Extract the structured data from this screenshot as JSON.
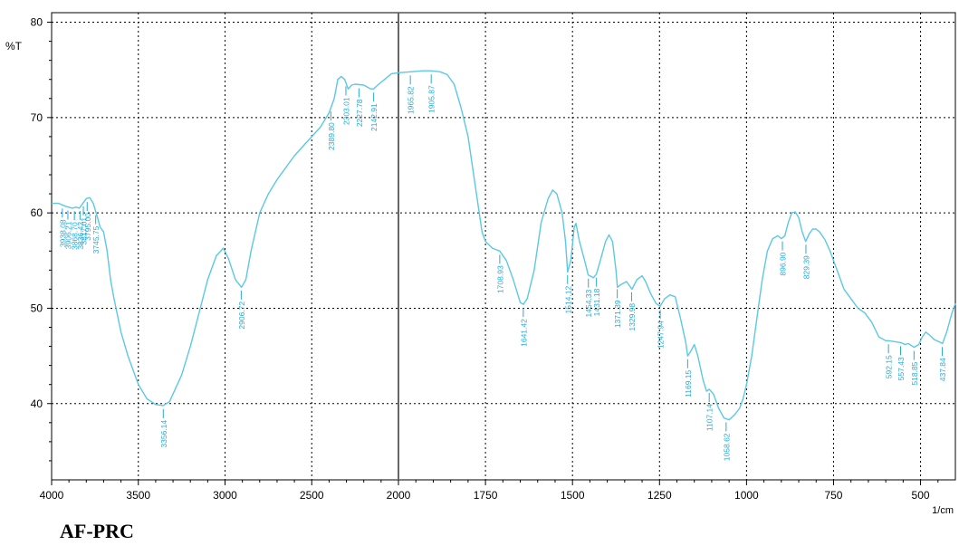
{
  "chart_data": {
    "type": "line",
    "ylabel": "%T",
    "xunit": "1/cm",
    "x_ticks": [
      4000,
      3500,
      3000,
      2500,
      2000,
      1750,
      1500,
      1250,
      1000,
      750,
      500
    ],
    "y_ticks": [
      40,
      50,
      60,
      70,
      80
    ],
    "ylim": [
      32,
      81
    ],
    "x_axis": "wavenumber, split scale: 4000-2000 and 2000-400",
    "grid": true,
    "line_color": "#5bc8e6",
    "label_color": "#29a9d6",
    "series": [
      {
        "points": [
          [
            4000,
            61
          ],
          [
            3960,
            61
          ],
          [
            3920,
            60.7
          ],
          [
            3880,
            60.5
          ],
          [
            3860,
            60.6
          ],
          [
            3840,
            60.5
          ],
          [
            3820,
            61
          ],
          [
            3800,
            61.5
          ],
          [
            3780,
            61.6
          ],
          [
            3760,
            61
          ],
          [
            3740,
            59.8
          ],
          [
            3720,
            58.5
          ],
          [
            3700,
            58
          ],
          [
            3680,
            56
          ],
          [
            3660,
            53
          ],
          [
            3640,
            51
          ],
          [
            3600,
            47.5
          ],
          [
            3560,
            45
          ],
          [
            3500,
            42
          ],
          [
            3450,
            40.5
          ],
          [
            3400,
            39.9
          ],
          [
            3356,
            39.8
          ],
          [
            3320,
            40.2
          ],
          [
            3250,
            43
          ],
          [
            3200,
            46
          ],
          [
            3150,
            49.5
          ],
          [
            3100,
            53
          ],
          [
            3050,
            55.5
          ],
          [
            3010,
            56.3
          ],
          [
            2980,
            55.2
          ],
          [
            2940,
            53
          ],
          [
            2905,
            52.2
          ],
          [
            2880,
            53
          ],
          [
            2850,
            56
          ],
          [
            2800,
            60
          ],
          [
            2750,
            62
          ],
          [
            2700,
            63.5
          ],
          [
            2600,
            66
          ],
          [
            2500,
            68
          ],
          [
            2450,
            69
          ],
          [
            2400,
            70.5
          ],
          [
            2370,
            72
          ],
          [
            2350,
            74
          ],
          [
            2330,
            74.3
          ],
          [
            2310,
            74
          ],
          [
            2290,
            73
          ],
          [
            2270,
            73.4
          ],
          [
            2250,
            73.5
          ],
          [
            2200,
            73.4
          ],
          [
            2160,
            73
          ],
          [
            2143,
            73
          ],
          [
            2120,
            73.4
          ],
          [
            2080,
            74
          ],
          [
            2040,
            74.6
          ],
          [
            2000,
            74.7
          ],
          [
            1965,
            74.8
          ],
          [
            1930,
            74.9
          ],
          [
            1906,
            74.9
          ],
          [
            1880,
            74.8
          ],
          [
            1860,
            74.5
          ],
          [
            1840,
            73.5
          ],
          [
            1820,
            71
          ],
          [
            1800,
            68
          ],
          [
            1780,
            63
          ],
          [
            1760,
            58
          ],
          [
            1750,
            57
          ],
          [
            1730,
            56.3
          ],
          [
            1709,
            56
          ],
          [
            1690,
            55
          ],
          [
            1670,
            53
          ],
          [
            1650,
            50.6
          ],
          [
            1641,
            50.4
          ],
          [
            1630,
            51
          ],
          [
            1610,
            54
          ],
          [
            1590,
            59
          ],
          [
            1570,
            61.5
          ],
          [
            1557,
            62.4
          ],
          [
            1545,
            62
          ],
          [
            1530,
            60
          ],
          [
            1520,
            57
          ],
          [
            1514,
            53.8
          ],
          [
            1505,
            55
          ],
          [
            1495,
            58.5
          ],
          [
            1490,
            58.9
          ],
          [
            1480,
            57
          ],
          [
            1465,
            55
          ],
          [
            1455,
            53.5
          ],
          [
            1440,
            53.2
          ],
          [
            1431,
            53.6
          ],
          [
            1420,
            55
          ],
          [
            1405,
            57
          ],
          [
            1395,
            57.7
          ],
          [
            1385,
            57
          ],
          [
            1375,
            54
          ],
          [
            1371,
            52.2
          ],
          [
            1360,
            52.5
          ],
          [
            1345,
            52.8
          ],
          [
            1329,
            52
          ],
          [
            1315,
            53
          ],
          [
            1300,
            53.4
          ],
          [
            1290,
            52.8
          ],
          [
            1275,
            51.5
          ],
          [
            1260,
            50.5
          ],
          [
            1248,
            50.2
          ],
          [
            1235,
            51
          ],
          [
            1220,
            51.4
          ],
          [
            1205,
            51.2
          ],
          [
            1190,
            49
          ],
          [
            1175,
            46.5
          ],
          [
            1169,
            45
          ],
          [
            1160,
            45.5
          ],
          [
            1150,
            46.2
          ],
          [
            1140,
            45
          ],
          [
            1125,
            42.5
          ],
          [
            1115,
            41.3
          ],
          [
            1107,
            41.5
          ],
          [
            1095,
            41
          ],
          [
            1080,
            39.5
          ],
          [
            1065,
            38.5
          ],
          [
            1050,
            38.3
          ],
          [
            1035,
            38.8
          ],
          [
            1020,
            39.5
          ],
          [
            1010,
            40.5
          ],
          [
            1000,
            42
          ],
          [
            985,
            45
          ],
          [
            970,
            49
          ],
          [
            955,
            53
          ],
          [
            940,
            56
          ],
          [
            925,
            57.3
          ],
          [
            910,
            57.6
          ],
          [
            900,
            57.3
          ],
          [
            890,
            57.6
          ],
          [
            880,
            59
          ],
          [
            870,
            60
          ],
          [
            860,
            60.1
          ],
          [
            850,
            59.5
          ],
          [
            840,
            58
          ],
          [
            830,
            57
          ],
          [
            820,
            57.8
          ],
          [
            810,
            58.3
          ],
          [
            800,
            58.3
          ],
          [
            790,
            58
          ],
          [
            775,
            57.2
          ],
          [
            760,
            56
          ],
          [
            740,
            54
          ],
          [
            720,
            52
          ],
          [
            700,
            51
          ],
          [
            680,
            50
          ],
          [
            660,
            49.5
          ],
          [
            640,
            48.5
          ],
          [
            620,
            47
          ],
          [
            600,
            46.6
          ],
          [
            592,
            46.6
          ],
          [
            575,
            46.5
          ],
          [
            557,
            46.4
          ],
          [
            545,
            46.2
          ],
          [
            535,
            46.3
          ],
          [
            519,
            45.9
          ],
          [
            505,
            46.2
          ],
          [
            495,
            47
          ],
          [
            485,
            47.5
          ],
          [
            475,
            47.2
          ],
          [
            460,
            46.7
          ],
          [
            448,
            46.5
          ],
          [
            437,
            46.3
          ],
          [
            425,
            47.5
          ],
          [
            410,
            49.5
          ],
          [
            400,
            50.5
          ]
        ]
      }
    ],
    "peak_labels": [
      {
        "x": 3938.08,
        "text": "3938.08"
      },
      {
        "x": 3906.21,
        "text": "3906.21"
      },
      {
        "x": 3868.7,
        "text": "3868.70"
      },
      {
        "x": 3836.42,
        "text": "3836.42"
      },
      {
        "x": 3817.01,
        "text": "3817.01"
      },
      {
        "x": 3795.0,
        "text": "3795.00"
      },
      {
        "x": 3745.75,
        "text": "3745.75"
      },
      {
        "x": 3356.14,
        "text": "3356.14"
      },
      {
        "x": 2906.72,
        "text": "2906.72"
      },
      {
        "x": 2389.8,
        "text": "2389.80"
      },
      {
        "x": 2303.01,
        "text": "2303.01"
      },
      {
        "x": 2227.78,
        "text": "2227.78"
      },
      {
        "x": 2142.91,
        "text": "2142.91"
      },
      {
        "x": 1965.82,
        "text": "1965.82"
      },
      {
        "x": 1905.87,
        "text": "1905.87"
      },
      {
        "x": 1708.93,
        "text": "1708.93"
      },
      {
        "x": 1641.42,
        "text": "1641.42"
      },
      {
        "x": 1514.12,
        "text": "1514.12"
      },
      {
        "x": 1454.33,
        "text": "1454.33"
      },
      {
        "x": 1431.18,
        "text": "1431.18"
      },
      {
        "x": 1371.39,
        "text": "1371.39"
      },
      {
        "x": 1329.98,
        "text": "1329.98"
      },
      {
        "x": 1247.94,
        "text": "1247.94"
      },
      {
        "x": 1169.15,
        "text": "1169.15"
      },
      {
        "x": 1107.14,
        "text": "1107.14"
      },
      {
        "x": 1058.62,
        "text": "1058.62"
      },
      {
        "x": 896.9,
        "text": "896.90"
      },
      {
        "x": 829.39,
        "text": "829.39"
      },
      {
        "x": 592.15,
        "text": "592.15"
      },
      {
        "x": 557.43,
        "text": "557.43"
      },
      {
        "x": 518.85,
        "text": "518.85"
      },
      {
        "x": 437.84,
        "text": "437.84"
      }
    ]
  },
  "caption": "AF-PRC"
}
